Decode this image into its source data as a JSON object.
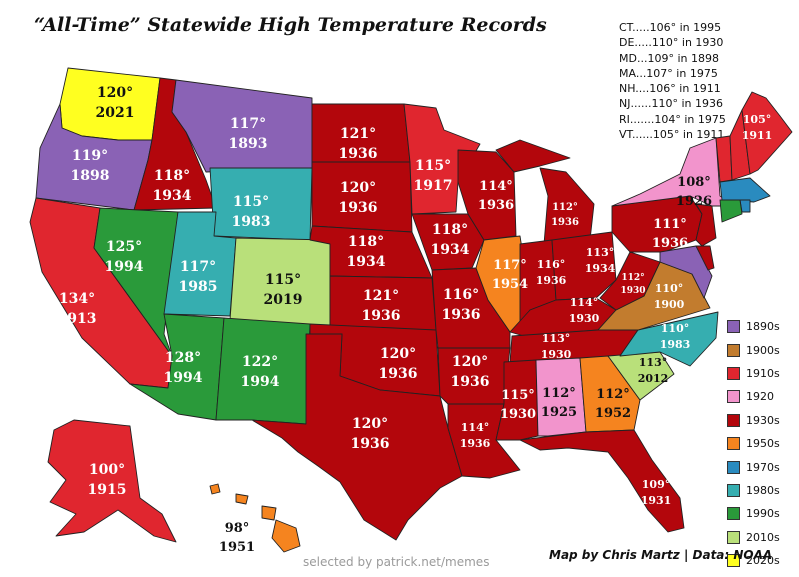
{
  "title": "“All-Time” Statewide High Temperature Records",
  "small_states": [
    "CT.....106° in 1995",
    "DE.....110° in 1930",
    "MD...109° in 1898",
    "MA...107° in  1975",
    "NH....106° in 1911",
    "NJ......110° in 1936",
    "RI.......104° in 1975",
    "VT......105° in 1911"
  ],
  "legend": [
    {
      "label": "1890s",
      "color": "#8a62b5"
    },
    {
      "label": "1900s",
      "color": "#c27c2e"
    },
    {
      "label": "1910s",
      "color": "#e0262f"
    },
    {
      "label": "1920",
      "color": "#f294cc"
    },
    {
      "label": "1930s",
      "color": "#b3060c"
    },
    {
      "label": "1950s",
      "color": "#f5841f"
    },
    {
      "label": "1970s",
      "color": "#2a8bbf"
    },
    {
      "label": "1980s",
      "color": "#36aeb0"
    },
    {
      "label": "1990s",
      "color": "#2a9a3a"
    },
    {
      "label": "2010s",
      "color": "#b9e07a"
    },
    {
      "label": "2020s",
      "color": "#ffff20"
    }
  ],
  "states": [
    {
      "name": "WA",
      "temp": "120°",
      "year": "2021",
      "decade": "2020s",
      "color": "#ffff20"
    },
    {
      "name": "OR",
      "temp": "119°",
      "year": "1898",
      "decade": "1890s",
      "color": "#8a62b5"
    },
    {
      "name": "CA",
      "temp": "134°",
      "year": "1913",
      "decade": "1910s",
      "color": "#e0262f"
    },
    {
      "name": "ID",
      "temp": "118°",
      "year": "1934",
      "decade": "1930s",
      "color": "#b3060c"
    },
    {
      "name": "NV",
      "temp": "125°",
      "year": "1994",
      "decade": "1990s",
      "color": "#2a9a3a"
    },
    {
      "name": "MT",
      "temp": "117°",
      "year": "1893",
      "decade": "1890s",
      "color": "#8a62b5"
    },
    {
      "name": "WY",
      "temp": "115°",
      "year": "1983",
      "decade": "1980s",
      "color": "#36aeb0"
    },
    {
      "name": "UT",
      "temp": "117°",
      "year": "1985",
      "decade": "1980s",
      "color": "#36aeb0"
    },
    {
      "name": "CO",
      "temp": "115°",
      "year": "2019",
      "decade": "2010s",
      "color": "#b9e07a"
    },
    {
      "name": "AZ",
      "temp": "128°",
      "year": "1994",
      "decade": "1990s",
      "color": "#2a9a3a"
    },
    {
      "name": "NM",
      "temp": "122°",
      "year": "1994",
      "decade": "1990s",
      "color": "#2a9a3a"
    },
    {
      "name": "ND",
      "temp": "121°",
      "year": "1936",
      "decade": "1930s",
      "color": "#b3060c"
    },
    {
      "name": "SD",
      "temp": "120°",
      "year": "1936",
      "decade": "1930s",
      "color": "#b3060c"
    },
    {
      "name": "NE",
      "temp": "118°",
      "year": "1934",
      "decade": "1930s",
      "color": "#b3060c"
    },
    {
      "name": "KS",
      "temp": "121°",
      "year": "1936",
      "decade": "1930s",
      "color": "#b3060c"
    },
    {
      "name": "OK",
      "temp": "120°",
      "year": "1936",
      "decade": "1930s",
      "color": "#b3060c"
    },
    {
      "name": "TX",
      "temp": "120°",
      "year": "1936",
      "decade": "1930s",
      "color": "#b3060c"
    },
    {
      "name": "MN",
      "temp": "115°",
      "year": "1917",
      "decade": "1910s",
      "color": "#e0262f"
    },
    {
      "name": "IA",
      "temp": "118°",
      "year": "1934",
      "decade": "1930s",
      "color": "#b3060c"
    },
    {
      "name": "MO",
      "temp": "116°",
      "year": "1936",
      "decade": "1930s",
      "color": "#b3060c"
    },
    {
      "name": "AR",
      "temp": "120°",
      "year": "1936",
      "decade": "1930s",
      "color": "#b3060c"
    },
    {
      "name": "LA",
      "temp": "114°",
      "year": "1936",
      "decade": "1930s",
      "color": "#b3060c"
    },
    {
      "name": "WI",
      "temp": "114°",
      "year": "1936",
      "decade": "1930s",
      "color": "#b3060c"
    },
    {
      "name": "IL",
      "temp": "117°",
      "year": "1954",
      "decade": "1950s",
      "color": "#f5841f"
    },
    {
      "name": "MI",
      "temp": "112°",
      "year": "1936",
      "decade": "1930s",
      "color": "#b3060c"
    },
    {
      "name": "IN",
      "temp": "116°",
      "year": "1936",
      "decade": "1930s",
      "color": "#b3060c"
    },
    {
      "name": "OH",
      "temp": "113°",
      "year": "1934",
      "decade": "1930s",
      "color": "#b3060c"
    },
    {
      "name": "KY",
      "temp": "114°",
      "year": "1930",
      "decade": "1930s",
      "color": "#b3060c"
    },
    {
      "name": "TN",
      "temp": "113°",
      "year": "1930",
      "decade": "1930s",
      "color": "#b3060c"
    },
    {
      "name": "MS",
      "temp": "115°",
      "year": "1930",
      "decade": "1930s",
      "color": "#b3060c"
    },
    {
      "name": "AL",
      "temp": "112°",
      "year": "1925",
      "decade": "1920",
      "color": "#f294cc"
    },
    {
      "name": "GA",
      "temp": "112°",
      "year": "1952",
      "decade": "1950s",
      "color": "#f5841f"
    },
    {
      "name": "FL",
      "temp": "109°",
      "year": "1931",
      "decade": "1930s",
      "color": "#b3060c"
    },
    {
      "name": "SC",
      "temp": "113°",
      "year": "2012",
      "decade": "2010s",
      "color": "#b9e07a"
    },
    {
      "name": "NC",
      "temp": "110°",
      "year": "1983",
      "decade": "1980s",
      "color": "#36aeb0"
    },
    {
      "name": "VA",
      "temp": "110°",
      "year": "1900",
      "decade": "1900s",
      "color": "#c27c2e"
    },
    {
      "name": "WV",
      "temp": "112°",
      "year": "1930",
      "decade": "1930s",
      "color": "#b3060c"
    },
    {
      "name": "PA",
      "temp": "111°",
      "year": "1936",
      "decade": "1930s",
      "color": "#b3060c"
    },
    {
      "name": "NY",
      "temp": "108°",
      "year": "1926",
      "decade": "1920",
      "color": "#f294cc"
    },
    {
      "name": "ME",
      "temp": "105°",
      "year": "1911",
      "decade": "1910s",
      "color": "#e0262f"
    },
    {
      "name": "AK",
      "temp": "100°",
      "year": "1915",
      "decade": "1910s",
      "color": "#e0262f"
    },
    {
      "name": "HI",
      "temp": "98°",
      "year": "1951",
      "decade": "1950s",
      "color": "#f5841f"
    }
  ],
  "unlabeled_states": [
    {
      "name": "VT",
      "color": "#e0262f"
    },
    {
      "name": "NH",
      "color": "#e0262f"
    },
    {
      "name": "MA",
      "color": "#2a8bbf"
    },
    {
      "name": "RI",
      "color": "#2a8bbf"
    },
    {
      "name": "CT",
      "color": "#2a9a3a"
    },
    {
      "name": "NJ",
      "color": "#b3060c"
    },
    {
      "name": "DE",
      "color": "#b3060c"
    },
    {
      "name": "MD",
      "color": "#8a62b5"
    }
  ],
  "credit": "Map by Chris Martz | Data: NOAA",
  "watermark": "selected by patrick.net/memes"
}
